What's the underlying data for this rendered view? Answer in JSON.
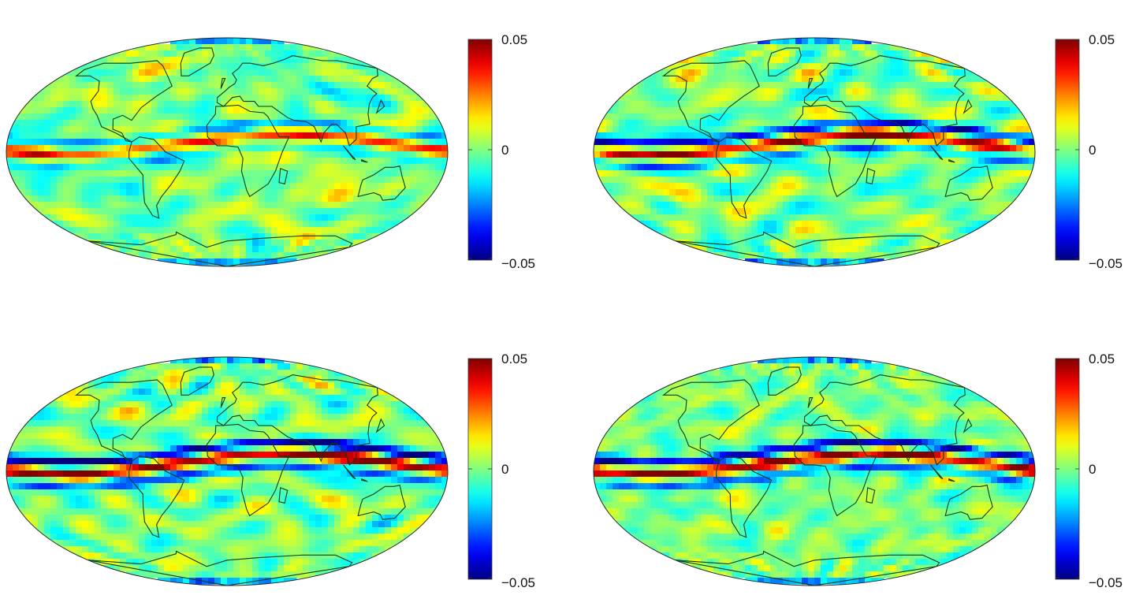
{
  "figure": {
    "colormap": "jet",
    "projection": "mollweide",
    "background": "#ffffff",
    "coastline_color": "#0b3a18"
  },
  "chart_data": [
    {
      "type": "heatmap",
      "projection": "mollweide",
      "colorbar": {
        "min": -0.05,
        "max": 0.05,
        "ticks": [
          "0.05",
          "0",
          "−0.05"
        ]
      },
      "pattern": {
        "equatorial_band": "weak",
        "peak_band_value": 0.035,
        "trough_band_value": -0.02,
        "noise_amplitude": 0.02
      }
    },
    {
      "type": "heatmap",
      "projection": "mollweide",
      "colorbar": {
        "min": -0.05,
        "max": 0.05,
        "ticks": [
          "0.05",
          "0",
          "−0.05"
        ]
      },
      "pattern": {
        "equatorial_band": "moderate",
        "peak_band_value": 0.045,
        "trough_band_value": -0.04,
        "noise_amplitude": 0.022
      }
    },
    {
      "type": "heatmap",
      "projection": "mollweide",
      "colorbar": {
        "min": -0.05,
        "max": 0.05,
        "ticks": [
          "0.05",
          "0",
          "−0.05"
        ]
      },
      "pattern": {
        "equatorial_band": "strong",
        "peak_band_value": 0.05,
        "trough_band_value": -0.05,
        "noise_amplitude": 0.025
      }
    },
    {
      "type": "heatmap",
      "projection": "mollweide",
      "colorbar": {
        "min": -0.05,
        "max": 0.05,
        "ticks": [
          "0.05",
          "0",
          "−0.05"
        ]
      },
      "pattern": {
        "equatorial_band": "strong",
        "peak_band_value": 0.05,
        "trough_band_value": -0.045,
        "noise_amplitude": 0.022
      }
    }
  ]
}
